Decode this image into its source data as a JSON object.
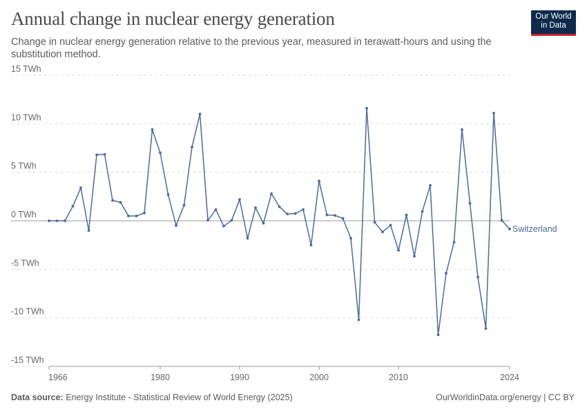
{
  "header": {
    "title": "Annual change in nuclear energy generation",
    "subtitle": "Change in nuclear energy generation relative to the previous year, measured in terawatt-hours and using the substitution method."
  },
  "logo": {
    "line1": "Our World",
    "line2": "in Data"
  },
  "footer": {
    "source_label": "Data source:",
    "source_text": "Energy Institute - Statistical Review of World Energy (2025)",
    "right_text": "OurWorldinData.org/energy | CC BY"
  },
  "colors": {
    "series": "#4c6a9c",
    "grid": "#dddddd",
    "zero": "#999999",
    "logo_bg": "#0d2a4d",
    "logo_accent": "#c4262e"
  },
  "chart_data": {
    "type": "line",
    "title": "Annual change in nuclear energy generation",
    "xlim": [
      1966,
      2024
    ],
    "ylim": [
      -15,
      15
    ],
    "y_ticks": [
      15,
      10,
      5,
      0,
      -5,
      -10,
      -15
    ],
    "y_tick_labels": [
      "15 TWh",
      "10 TWh",
      "5 TWh",
      "0 TWh",
      "-5 TWh",
      "-10 TWh",
      "-15 TWh"
    ],
    "x_ticks": [
      1966,
      1980,
      1990,
      2000,
      2010,
      2024
    ],
    "x_tick_labels": [
      "1966",
      "1980",
      "1990",
      "2000",
      "2010",
      "2024"
    ],
    "grid": "horizontal dashed",
    "series": [
      {
        "name": "Switzerland",
        "x": [
          1966,
          1967,
          1968,
          1969,
          1970,
          1971,
          1972,
          1973,
          1974,
          1975,
          1976,
          1977,
          1978,
          1979,
          1980,
          1981,
          1982,
          1983,
          1984,
          1985,
          1986,
          1987,
          1988,
          1989,
          1990,
          1991,
          1992,
          1993,
          1994,
          1995,
          1996,
          1997,
          1998,
          1999,
          2000,
          2001,
          2002,
          2003,
          2004,
          2005,
          2006,
          2007,
          2008,
          2009,
          2010,
          2011,
          2012,
          2013,
          2014,
          2015,
          2016,
          2017,
          2018,
          2019,
          2020,
          2021,
          2022,
          2023,
          2024
        ],
        "y": [
          0,
          0,
          0,
          1.5,
          3.4,
          -1.0,
          6.8,
          6.85,
          2.1,
          1.9,
          0.5,
          0.5,
          0.8,
          9.4,
          7.0,
          2.7,
          -0.5,
          1.6,
          7.6,
          11.0,
          0.05,
          1.15,
          -0.55,
          0.05,
          2.2,
          -1.8,
          1.35,
          -0.25,
          2.8,
          1.45,
          0.7,
          0.75,
          1.15,
          -2.5,
          4.1,
          0.6,
          0.55,
          0.25,
          -1.8,
          -10.2,
          11.6,
          -0.15,
          -1.15,
          -0.45,
          -3.05,
          0.6,
          -3.65,
          0.95,
          3.65,
          -11.75,
          -5.4,
          -2.2,
          9.4,
          1.8,
          -5.8,
          -11.1,
          11.1,
          0.05,
          -0.85
        ]
      }
    ]
  }
}
